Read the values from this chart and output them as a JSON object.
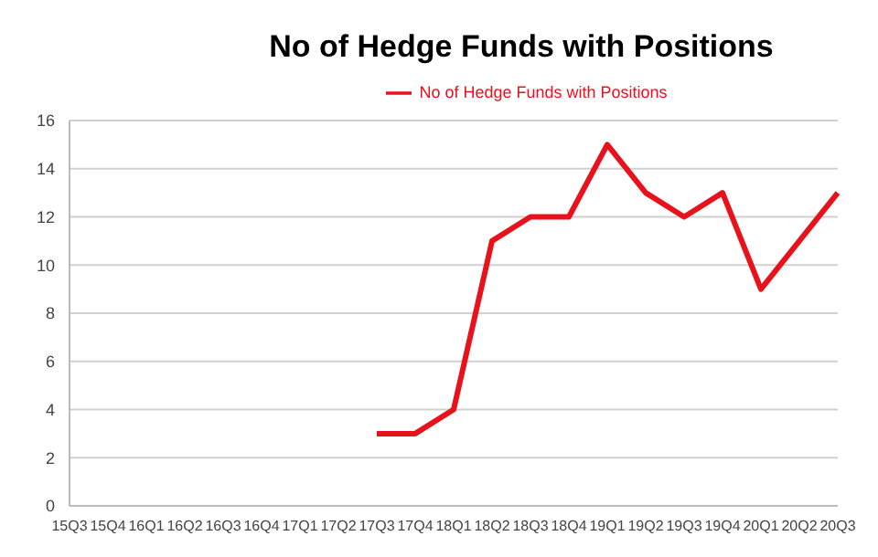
{
  "chart_data": {
    "type": "line",
    "title": "No of Hedge Funds with Positions",
    "categories": [
      "15Q3",
      "15Q4",
      "16Q1",
      "16Q2",
      "16Q3",
      "16Q4",
      "17Q1",
      "17Q2",
      "17Q3",
      "17Q4",
      "18Q1",
      "18Q2",
      "18Q3",
      "18Q4",
      "19Q1",
      "19Q2",
      "19Q3",
      "19Q4",
      "20Q1",
      "20Q2",
      "20Q3"
    ],
    "series": [
      {
        "name": "No of Hedge Funds with Positions",
        "color": "#e8121c",
        "values": [
          null,
          null,
          null,
          null,
          null,
          null,
          null,
          null,
          3,
          3,
          4,
          11,
          12,
          12,
          15,
          13,
          12,
          13,
          9,
          11,
          13
        ]
      }
    ],
    "ylim": [
      0,
      16
    ],
    "yticks": [
      0,
      2,
      4,
      6,
      8,
      10,
      12,
      14,
      16
    ],
    "grid": "y",
    "legend": "top",
    "marker": "none",
    "line_style": "solid"
  }
}
